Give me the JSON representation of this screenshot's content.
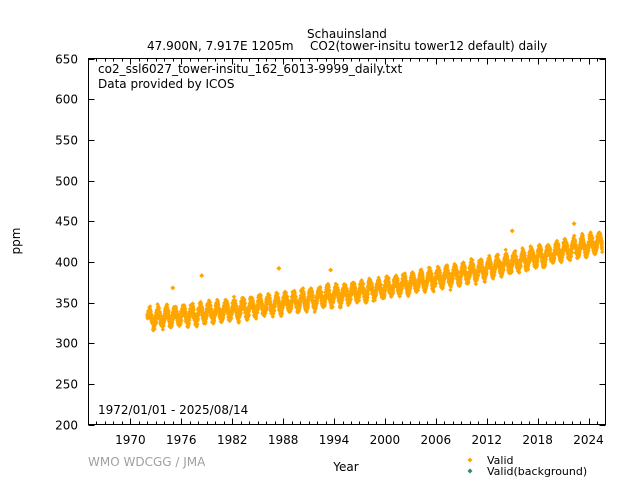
{
  "chart_data": {
    "type": "scatter",
    "title": "Schauinsland",
    "subtitle_location": "47.900N, 7.917E 1205m",
    "subtitle_series": "CO2(tower-insitu tower12 default) daily",
    "file_name": "co2_ssl6027_tower-insitu_162_6013-9999_daily.txt",
    "provider": "Data provided by ICOS",
    "date_range": "1972/01/01 - 2025/08/14",
    "xlabel": "Year",
    "ylabel": "ppm",
    "xlim": [
      1965.06,
      2026.0
    ],
    "ylim": [
      200,
      650
    ],
    "x_ticks": [
      "1970",
      "1976",
      "1982",
      "1988",
      "1994",
      "2000",
      "2006",
      "2012",
      "2018",
      "2024"
    ],
    "x_tick_values": [
      1970,
      1976,
      1982,
      1988,
      1994,
      2000,
      2006,
      2012,
      2018,
      2024
    ],
    "y_ticks": [
      "200",
      "250",
      "300",
      "350",
      "400",
      "450",
      "500",
      "550",
      "600",
      "650"
    ],
    "y_tick_values": [
      200,
      250,
      300,
      350,
      400,
      450,
      500,
      550,
      600,
      650
    ],
    "legend": [
      {
        "label": "Valid",
        "color": "#ffa500"
      },
      {
        "label": "Valid(background)",
        "color": "#2e8b57"
      }
    ],
    "legend_placement": "bottom-right",
    "grid": false,
    "series": [
      {
        "name": "Valid",
        "color": "#ffa500",
        "x_start": 1972.0,
        "x_end": 2025.62,
        "trend_points": [
          [
            1972,
            330
          ],
          [
            1980,
            338
          ],
          [
            1990,
            352
          ],
          [
            2000,
            368
          ],
          [
            2010,
            387
          ],
          [
            2020,
            411
          ],
          [
            2025.6,
            424
          ]
        ],
        "seasonal_half_amplitude": 9,
        "daily_noise": 6,
        "outliers": [
          [
            1975.0,
            368
          ],
          [
            1978.4,
            383
          ],
          [
            1987.5,
            392
          ],
          [
            1993.6,
            390
          ],
          [
            2015.0,
            438
          ],
          [
            2022.3,
            447
          ]
        ]
      },
      {
        "name": "Valid(background)",
        "color": "#2e8b57",
        "points": []
      }
    ]
  },
  "watermark": "WMO WDCGG / JMA"
}
